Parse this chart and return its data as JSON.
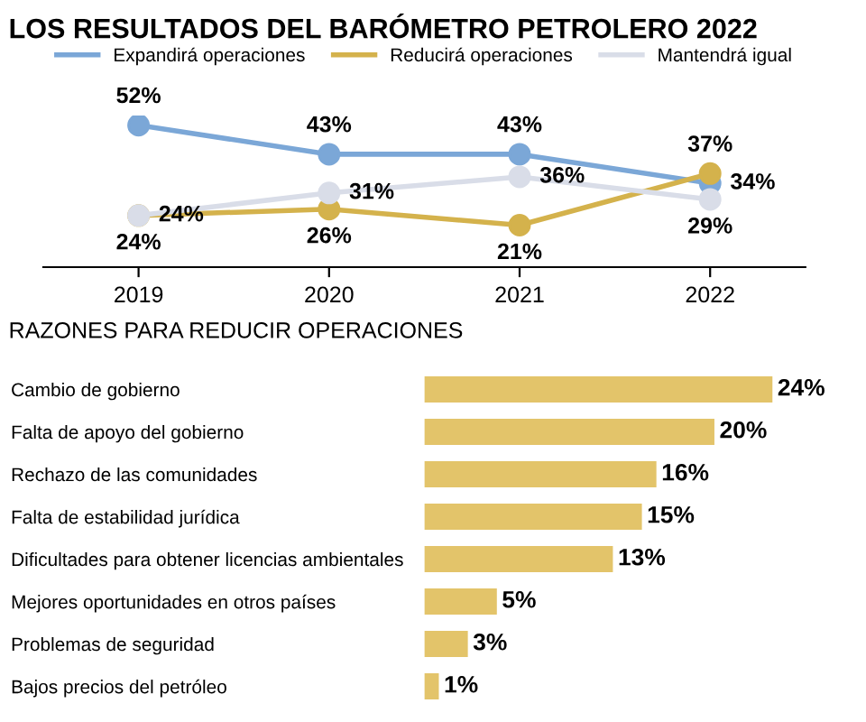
{
  "chart_data": [
    {
      "type": "line",
      "title": "LOS RESULTADOS DEL BARÓMETRO PETROLERO 2022",
      "categories": [
        "2019",
        "2020",
        "2021",
        "2022"
      ],
      "marker": "circle",
      "legend": "top",
      "tick_labels": "x",
      "series": [
        {
          "name": "Expandirá operaciones",
          "color": "#7ba7d7",
          "values": [
            52,
            43,
            43,
            34
          ],
          "value_labels": [
            "52%",
            "43%",
            "43%",
            "34%"
          ]
        },
        {
          "name": "Reducirá operaciones",
          "color": "#d4b24c",
          "values": [
            24,
            26,
            21,
            37
          ],
          "value_labels": [
            "24%",
            "26%",
            "21%",
            "37%"
          ]
        },
        {
          "name": "Mantendrá igual",
          "color": "#d9dde8",
          "values": [
            24,
            31,
            36,
            29
          ],
          "value_labels": [
            "24%",
            "31%",
            "36%",
            "29%"
          ]
        }
      ]
    },
    {
      "type": "bar",
      "orientation": "horizontal",
      "title": "RAZONES PARA REDUCIR OPERACIONES",
      "tick_labels": "y",
      "color": "#e3c46a",
      "categories": [
        "Cambio de gobierno",
        "Falta de apoyo del gobierno",
        "Rechazo de las comunidades",
        "Falta de estabilidad jurídica",
        "Dificultades para obtener licencias ambientales",
        "Mejores oportunidades en otros países",
        "Problemas de seguridad",
        "Bajos precios del petróleo"
      ],
      "values": [
        24,
        20,
        16,
        15,
        13,
        5,
        3,
        1
      ],
      "value_labels": [
        "24%",
        "20%",
        "16%",
        "15%",
        "13%",
        "5%",
        "3%",
        "1%"
      ]
    }
  ]
}
